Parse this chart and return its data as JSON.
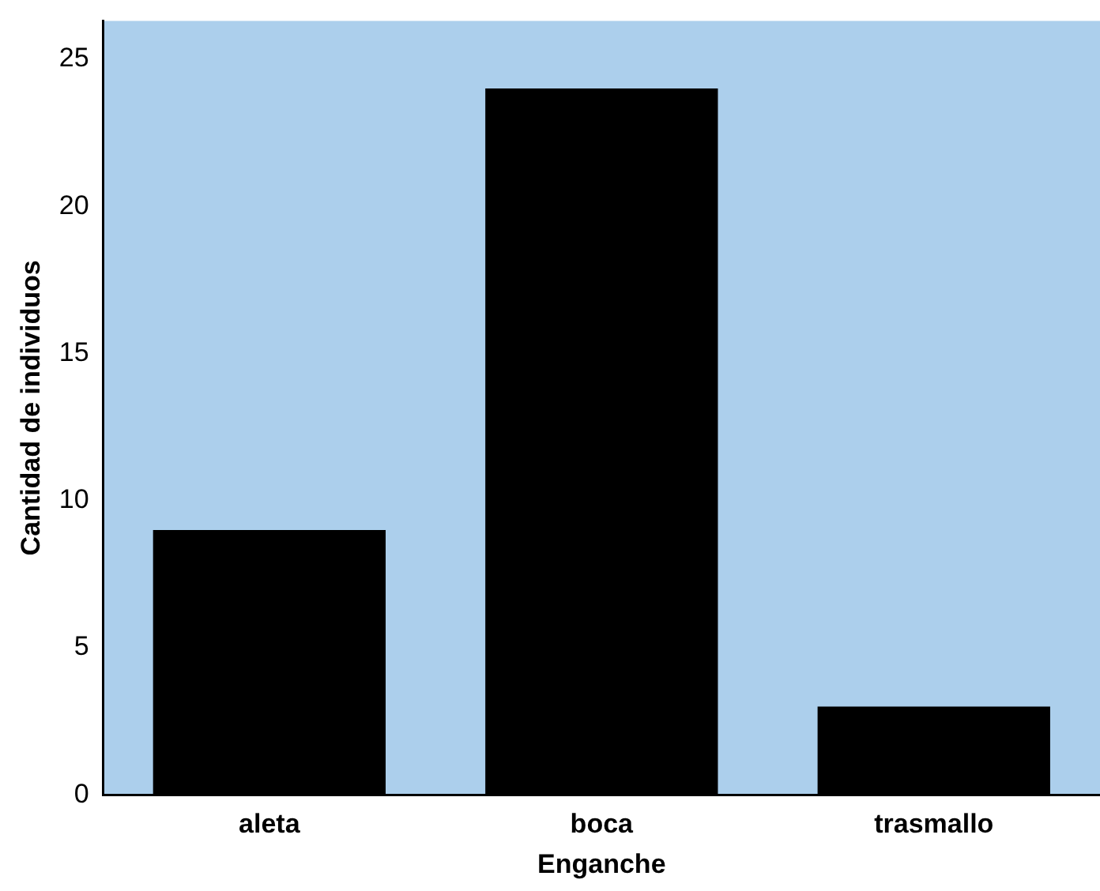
{
  "chart_data": {
    "type": "bar",
    "xlabel": "Enganche",
    "ylabel": "Cantidad de individuos",
    "categories": [
      "aleta",
      "boca",
      "trasmallo"
    ],
    "values": [
      9,
      24,
      3
    ],
    "color": "#000000",
    "ylim": [
      0,
      26.3
    ],
    "yticks": [
      0,
      5,
      10,
      15,
      20,
      25
    ],
    "grid": false,
    "legend": false
  }
}
